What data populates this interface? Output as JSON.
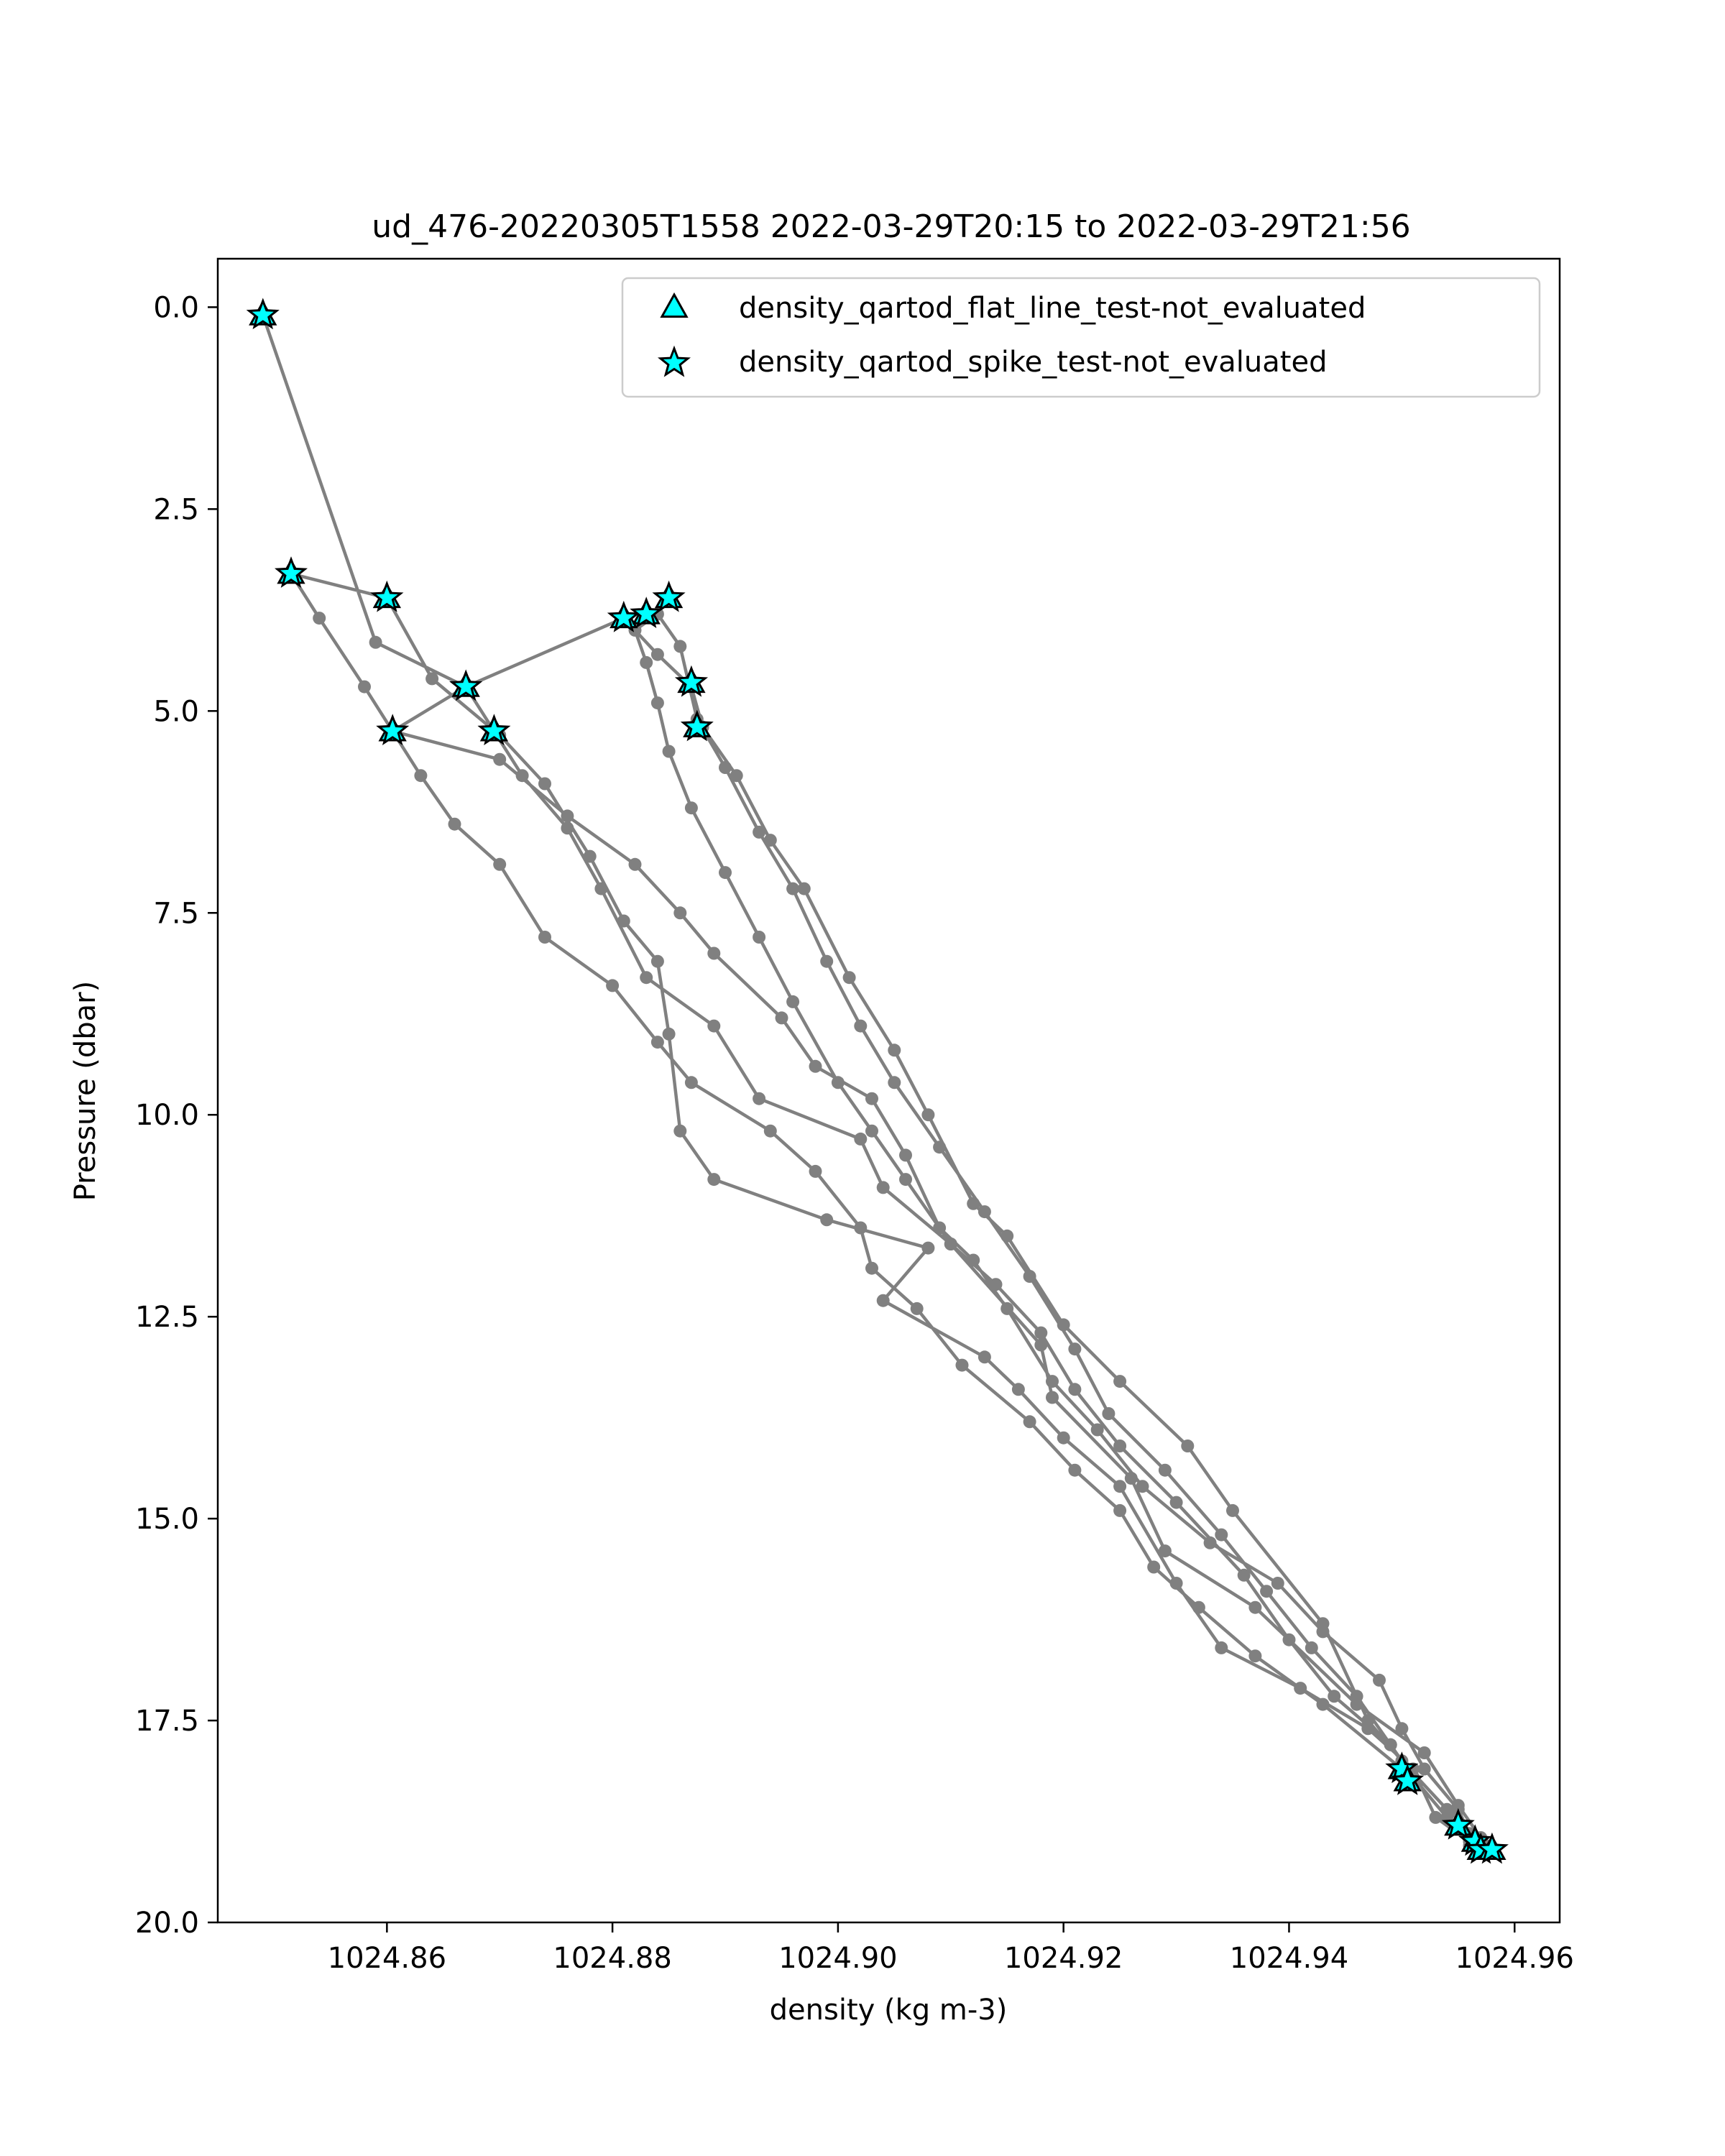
{
  "chart_data": {
    "type": "scatter",
    "title": "ud_476-20220305T1558 2022-03-29T20:15 to 2022-03-29T21:56",
    "xlabel": "density (kg m-3)",
    "ylabel": "Pressure (dbar)",
    "xlim": [
      1024.845,
      1024.964
    ],
    "ylim": [
      20.0,
      -0.6
    ],
    "y_inverted": true,
    "x_ticks": [
      1024.86,
      1024.88,
      1024.9,
      1024.92,
      1024.94,
      1024.96
    ],
    "x_tick_labels": [
      "1024.86",
      "1024.88",
      "1024.90",
      "1024.92",
      "1024.94",
      "1024.96"
    ],
    "y_ticks": [
      0.0,
      2.5,
      5.0,
      7.5,
      10.0,
      12.5,
      15.0,
      17.5,
      20.0
    ],
    "y_tick_labels": [
      "0.0",
      "2.5",
      "5.0",
      "7.5",
      "10.0",
      "12.5",
      "15.0",
      "17.5",
      "20.0"
    ],
    "grid": false,
    "legend_position": "top-right",
    "legend": [
      {
        "label": "density_qartod_flat_line_test-not_evaluated",
        "marker": "triangle",
        "color": "#00ffff"
      },
      {
        "label": "density_qartod_spike_test-not_evaluated",
        "marker": "star",
        "color": "#00ffff"
      }
    ],
    "line_color": "#808080",
    "profile": [
      [
        1024.849,
        0.1
      ],
      [
        1024.859,
        4.15
      ],
      [
        1024.867,
        4.7
      ],
      [
        1024.872,
        5.8
      ],
      [
        1024.876,
        6.45
      ],
      [
        1024.879,
        7.2
      ],
      [
        1024.883,
        8.3
      ],
      [
        1024.889,
        8.9
      ],
      [
        1024.893,
        9.8
      ],
      [
        1024.902,
        10.3
      ],
      [
        1024.904,
        10.9
      ],
      [
        1024.91,
        11.6
      ],
      [
        1024.918,
        12.85
      ],
      [
        1024.919,
        13.5
      ],
      [
        1024.926,
        14.5
      ],
      [
        1024.929,
        15.4
      ],
      [
        1024.937,
        16.1
      ],
      [
        1024.946,
        17.3
      ],
      [
        1024.952,
        17.9
      ],
      [
        1024.955,
        18.55
      ],
      [
        1024.957,
        18.95
      ],
      [
        1024.958,
        19.1
      ],
      [
        1024.9575,
        19.05
      ],
      [
        1024.954,
        18.6
      ],
      [
        1024.95,
        18.0
      ],
      [
        1024.947,
        17.5
      ],
      [
        1024.943,
        16.3
      ],
      [
        1024.935,
        14.9
      ],
      [
        1024.931,
        14.1
      ],
      [
        1024.925,
        13.3
      ],
      [
        1024.92,
        12.6
      ],
      [
        1024.915,
        11.5
      ],
      [
        1024.912,
        11.1
      ],
      [
        1024.908,
        10.0
      ],
      [
        1024.905,
        9.2
      ],
      [
        1024.901,
        8.3
      ],
      [
        1024.897,
        7.2
      ],
      [
        1024.894,
        6.6
      ],
      [
        1024.891,
        5.8
      ],
      [
        1024.888,
        5.2
      ],
      [
        1024.887,
        4.7
      ],
      [
        1024.884,
        4.3
      ],
      [
        1024.881,
        3.85
      ],
      [
        1024.867,
        4.7
      ],
      [
        1024.8605,
        5.25
      ],
      [
        1024.87,
        5.6
      ],
      [
        1024.876,
        6.3
      ],
      [
        1024.882,
        6.9
      ],
      [
        1024.886,
        7.5
      ],
      [
        1024.889,
        8.0
      ],
      [
        1024.895,
        8.8
      ],
      [
        1024.898,
        9.4
      ],
      [
        1024.903,
        9.8
      ],
      [
        1024.906,
        10.5
      ],
      [
        1024.909,
        11.4
      ],
      [
        1024.912,
        11.8
      ],
      [
        1024.915,
        12.4
      ],
      [
        1024.919,
        13.3
      ],
      [
        1024.923,
        13.9
      ],
      [
        1024.927,
        14.6
      ],
      [
        1024.933,
        15.3
      ],
      [
        1024.939,
        15.8
      ],
      [
        1024.943,
        16.4
      ],
      [
        1024.948,
        17.0
      ],
      [
        1024.95,
        17.6
      ],
      [
        1024.952,
        18.1
      ],
      [
        1024.955,
        18.6
      ],
      [
        1024.956,
        18.9
      ],
      [
        1024.9575,
        19.1
      ],
      [
        1024.956,
        19.05
      ],
      [
        1024.954,
        18.7
      ],
      [
        1024.951,
        18.2
      ],
      [
        1024.949,
        17.8
      ],
      [
        1024.944,
        17.2
      ],
      [
        1024.94,
        16.5
      ],
      [
        1024.936,
        15.7
      ],
      [
        1024.93,
        14.8
      ],
      [
        1024.925,
        14.1
      ],
      [
        1024.921,
        13.4
      ],
      [
        1024.918,
        12.7
      ],
      [
        1024.914,
        12.1
      ],
      [
        1024.91,
        11.6
      ],
      [
        1024.906,
        10.8
      ],
      [
        1024.903,
        10.2
      ],
      [
        1024.9,
        9.6
      ],
      [
        1024.896,
        8.6
      ],
      [
        1024.893,
        7.8
      ],
      [
        1024.89,
        7.0
      ],
      [
        1024.887,
        6.2
      ],
      [
        1024.885,
        5.5
      ],
      [
        1024.884,
        4.9
      ],
      [
        1024.883,
        4.4
      ],
      [
        1024.882,
        4.0
      ],
      [
        1024.884,
        3.8
      ],
      [
        1024.886,
        4.2
      ],
      [
        1024.8875,
        5.1
      ],
      [
        1024.89,
        5.7
      ],
      [
        1024.893,
        6.5
      ],
      [
        1024.896,
        7.2
      ],
      [
        1024.899,
        8.1
      ],
      [
        1024.902,
        8.9
      ],
      [
        1024.905,
        9.6
      ],
      [
        1024.909,
        10.4
      ],
      [
        1024.913,
        11.2
      ],
      [
        1024.917,
        12.0
      ],
      [
        1024.921,
        12.9
      ],
      [
        1024.924,
        13.7
      ],
      [
        1024.929,
        14.4
      ],
      [
        1024.934,
        15.2
      ],
      [
        1024.938,
        15.9
      ],
      [
        1024.942,
        16.6
      ],
      [
        1024.946,
        17.2
      ],
      [
        1024.949,
        17.8
      ],
      [
        1024.951,
        18.2
      ],
      [
        1024.95,
        18.1
      ],
      [
        1024.943,
        17.3
      ],
      [
        1024.937,
        16.7
      ],
      [
        1024.932,
        16.1
      ],
      [
        1024.928,
        15.6
      ],
      [
        1024.925,
        14.9
      ],
      [
        1024.921,
        14.4
      ],
      [
        1024.917,
        13.8
      ],
      [
        1024.911,
        13.1
      ],
      [
        1024.907,
        12.4
      ],
      [
        1024.903,
        11.9
      ],
      [
        1024.902,
        11.4
      ],
      [
        1024.898,
        10.7
      ],
      [
        1024.894,
        10.2
      ],
      [
        1024.887,
        9.6
      ],
      [
        1024.884,
        9.1
      ],
      [
        1024.88,
        8.4
      ],
      [
        1024.874,
        7.8
      ],
      [
        1024.87,
        6.9
      ],
      [
        1024.866,
        6.4
      ],
      [
        1024.863,
        5.8
      ],
      [
        1024.8605,
        5.25
      ],
      [
        1024.858,
        4.7
      ],
      [
        1024.854,
        3.85
      ],
      [
        1024.8515,
        3.3
      ],
      [
        1024.86,
        3.6
      ],
      [
        1024.864,
        4.6
      ],
      [
        1024.87,
        5.3
      ],
      [
        1024.874,
        5.9
      ],
      [
        1024.878,
        6.8
      ],
      [
        1024.881,
        7.6
      ],
      [
        1024.884,
        8.1
      ],
      [
        1024.885,
        9.0
      ],
      [
        1024.886,
        10.2
      ],
      [
        1024.889,
        10.8
      ],
      [
        1024.899,
        11.3
      ],
      [
        1024.908,
        11.65
      ],
      [
        1024.904,
        12.3
      ],
      [
        1024.913,
        13.0
      ],
      [
        1024.916,
        13.4
      ],
      [
        1024.92,
        14.0
      ],
      [
        1024.925,
        14.6
      ],
      [
        1024.93,
        15.8
      ],
      [
        1024.934,
        16.6
      ],
      [
        1024.941,
        17.1
      ],
      [
        1024.947,
        17.6
      ],
      [
        1024.951,
        18.1
      ],
      [
        1024.953,
        18.7
      ],
      [
        1024.956,
        19.0
      ],
      [
        1024.958,
        19.1
      ]
    ],
    "flagged_points": [
      [
        1024.849,
        0.1
      ],
      [
        1024.8515,
        3.3
      ],
      [
        1024.86,
        3.6
      ],
      [
        1024.867,
        4.7
      ],
      [
        1024.8605,
        5.25
      ],
      [
        1024.8695,
        5.25
      ],
      [
        1024.881,
        3.85
      ],
      [
        1024.883,
        3.8
      ],
      [
        1024.885,
        3.6
      ],
      [
        1024.887,
        4.65
      ],
      [
        1024.8875,
        5.2
      ],
      [
        1024.95,
        18.1
      ],
      [
        1024.9505,
        18.25
      ],
      [
        1024.955,
        18.8
      ],
      [
        1024.9565,
        19.0
      ],
      [
        1024.957,
        19.1
      ],
      [
        1024.958,
        19.1
      ]
    ]
  }
}
